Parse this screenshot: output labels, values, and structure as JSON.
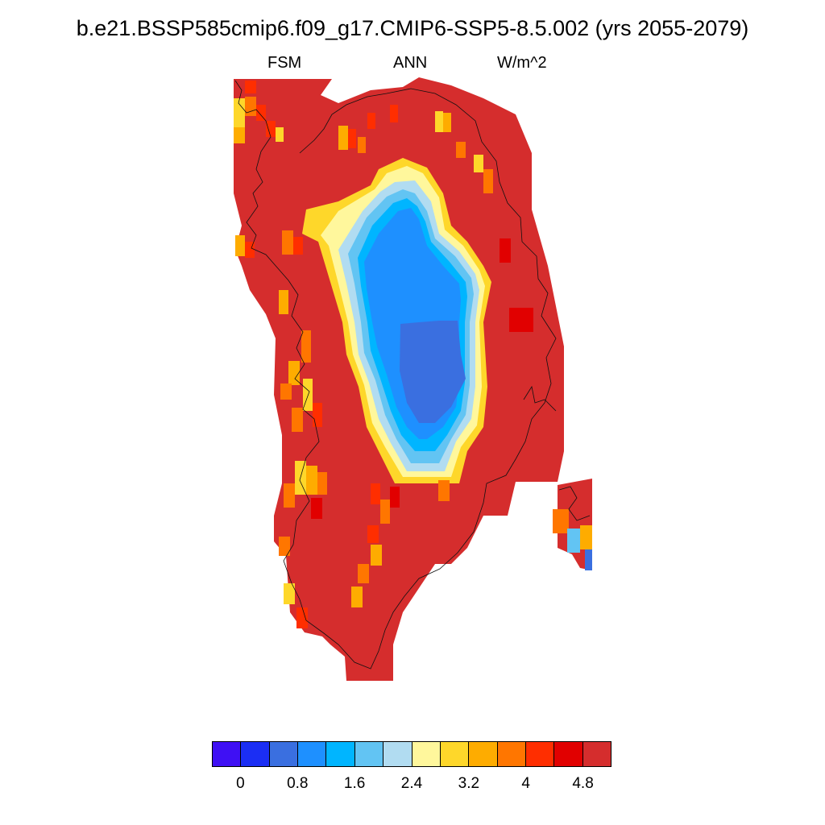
{
  "title": "b.e21.BSSP585cmip6.f09_g17.CMIP6-SSP5-8.5.002 (yrs 2055-2079)",
  "subtitle_left": "FSM",
  "subtitle_center": "ANN",
  "subtitle_right": "W/m^2",
  "colorbar": {
    "colors": [
      "#3f10f4",
      "#1b2ef4",
      "#3a6fe0",
      "#1e90ff",
      "#00b5ff",
      "#62c4f3",
      "#b1dcf1",
      "#fff79c",
      "#fed72a",
      "#feac00",
      "#ff7600",
      "#ff2e00",
      "#e10000",
      "#d52d2d"
    ],
    "labels": [
      "0",
      "0.8",
      "1.6",
      "2.4",
      "3.2",
      "4",
      "4.8"
    ]
  },
  "map_data": {
    "variable": "FSM",
    "season": "ANN",
    "units": "W/m^2",
    "value_pattern": "values near 4.8+ over the coastal margin, decreasing to about 0.4-1.6 over the interior ice sheet"
  }
}
